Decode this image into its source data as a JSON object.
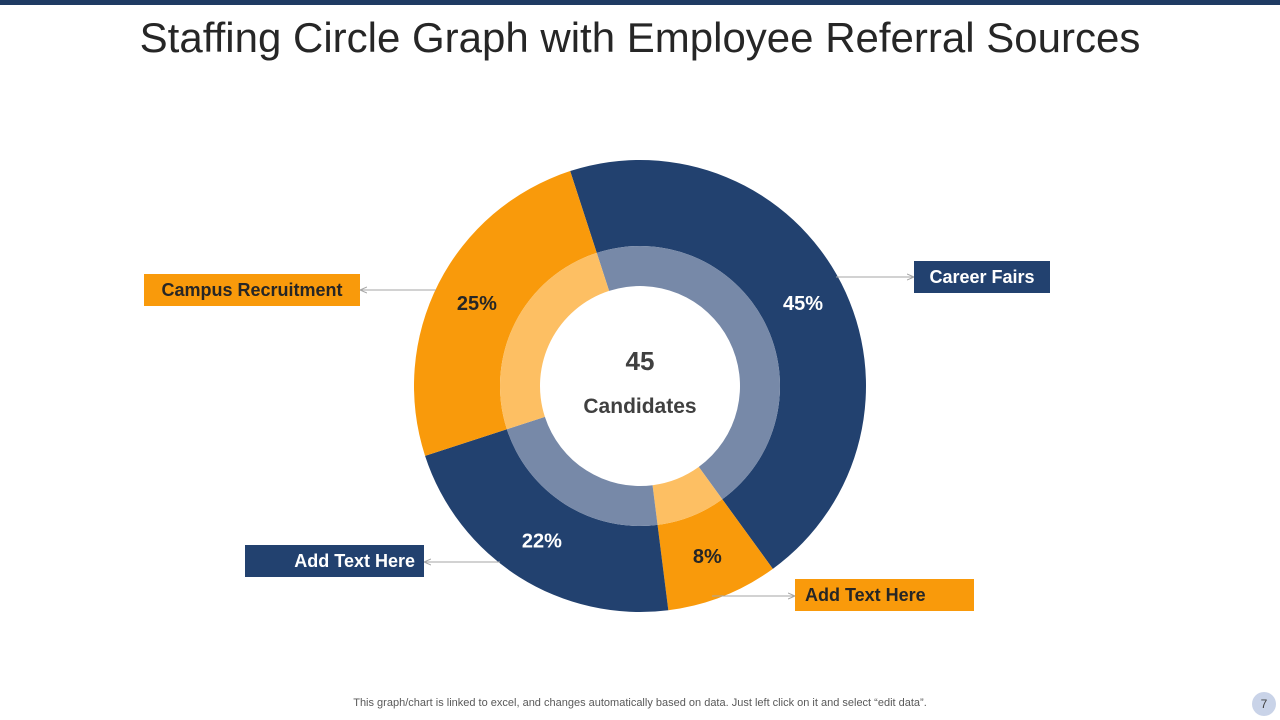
{
  "title": "Staffing Circle Graph with Employee Referral Sources",
  "chart_data": {
    "type": "pie",
    "variant": "donut",
    "center_value": "45",
    "center_label": "Candidates",
    "slices": [
      {
        "label": "Career Fairs",
        "value": 45,
        "value_label": "45%",
        "color": "#22416f"
      },
      {
        "label": "Add Text Here",
        "value": 8,
        "value_label": "8%",
        "color": "#f99a0b"
      },
      {
        "label": "Add Text Here",
        "value": 22,
        "value_label": "22%",
        "color": "#22416f"
      },
      {
        "label": "Campus Recruitment",
        "value": 25,
        "value_label": "25%",
        "color": "#f99a0b"
      }
    ],
    "inner_ring_colors": {
      "navy": "#7789a8",
      "orange": "#fdbf63"
    }
  },
  "footer": "This graph/chart is linked to excel, and changes automatically based on data. Just left click on it and select “edit data”.",
  "page_number": "7"
}
